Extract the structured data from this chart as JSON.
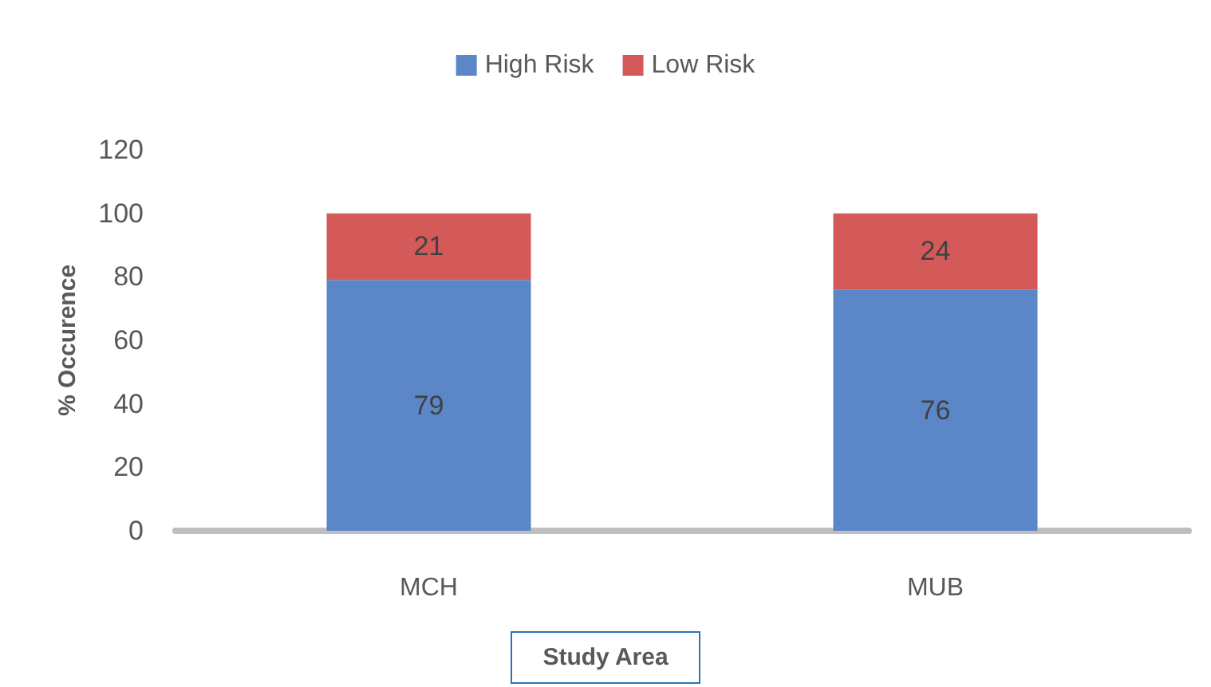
{
  "chart_data": {
    "type": "bar",
    "stacked": true,
    "xlabel": "Study Area",
    "ylabel": "% Occurence",
    "categories": [
      "MCH",
      "MUB"
    ],
    "series": [
      {
        "name": "High Risk",
        "color": "#5b87c8",
        "values": [
          79,
          76
        ]
      },
      {
        "name": "Low Risk",
        "color": "#d45a5a",
        "values": [
          21,
          24
        ]
      }
    ],
    "ylim": [
      0,
      120
    ],
    "yticks": [
      0,
      20,
      40,
      60,
      80,
      100,
      120
    ],
    "grid": false,
    "legend": "top",
    "data_labels": true
  }
}
